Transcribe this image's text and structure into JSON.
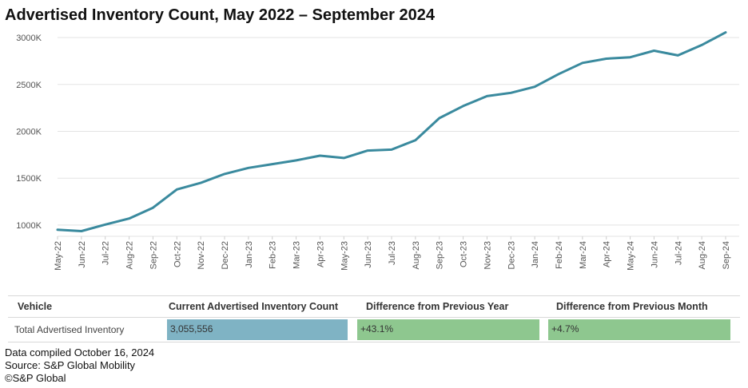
{
  "chart_data": {
    "type": "line",
    "title": "Advertised Inventory Count, May 2022 – September 2024",
    "xlabel": "",
    "ylabel": "",
    "ylim": [
      880,
      3060
    ],
    "yticks": [
      1000,
      1500,
      2000,
      2500,
      3000
    ],
    "ytick_labels": [
      "1000K",
      "1500K",
      "2000K",
      "2500K",
      "3000K"
    ],
    "grid": true,
    "legend": "none",
    "categories": [
      "May-22",
      "Jun-22",
      "Jul-22",
      "Aug-22",
      "Sep-22",
      "Oct-22",
      "Nov-22",
      "Dec-22",
      "Jan-23",
      "Feb-23",
      "Mar-23",
      "Apr-23",
      "May-23",
      "Jun-23",
      "Jul-23",
      "Aug-23",
      "Sep-23",
      "Oct-23",
      "Nov-23",
      "Dec-23",
      "Jan-24",
      "Feb-24",
      "Mar-24",
      "Apr-24",
      "May-24",
      "Jun-24",
      "Jul-24",
      "Aug-24",
      "Sep-24"
    ],
    "series": [
      {
        "name": "Total Advertised Inventory (K)",
        "color": "#3a8a9e",
        "values": [
          950,
          935,
          1005,
          1070,
          1185,
          1380,
          1450,
          1545,
          1610,
          1650,
          1690,
          1740,
          1715,
          1795,
          1805,
          1905,
          2140,
          2270,
          2375,
          2410,
          2475,
          2610,
          2730,
          2775,
          2790,
          2860,
          2810,
          2920,
          3055
        ]
      }
    ]
  },
  "table": {
    "headers": [
      "Vehicle",
      "Current Advertised Inventory Count",
      "Difference from Previous Year",
      "Difference from Previous Month"
    ],
    "row": {
      "label": "Total Advertised Inventory",
      "count": "3,055,556",
      "yoy": "+43.1%",
      "mom": "+4.7%"
    },
    "colors": {
      "count": "#7fb3c4",
      "yoy": "#8ec78f",
      "mom": "#8ec78f"
    }
  },
  "footer": {
    "line1": "Data compiled October 16, 2024",
    "line2": "Source: S&P Global Mobility",
    "line3": "©S&P Global"
  }
}
